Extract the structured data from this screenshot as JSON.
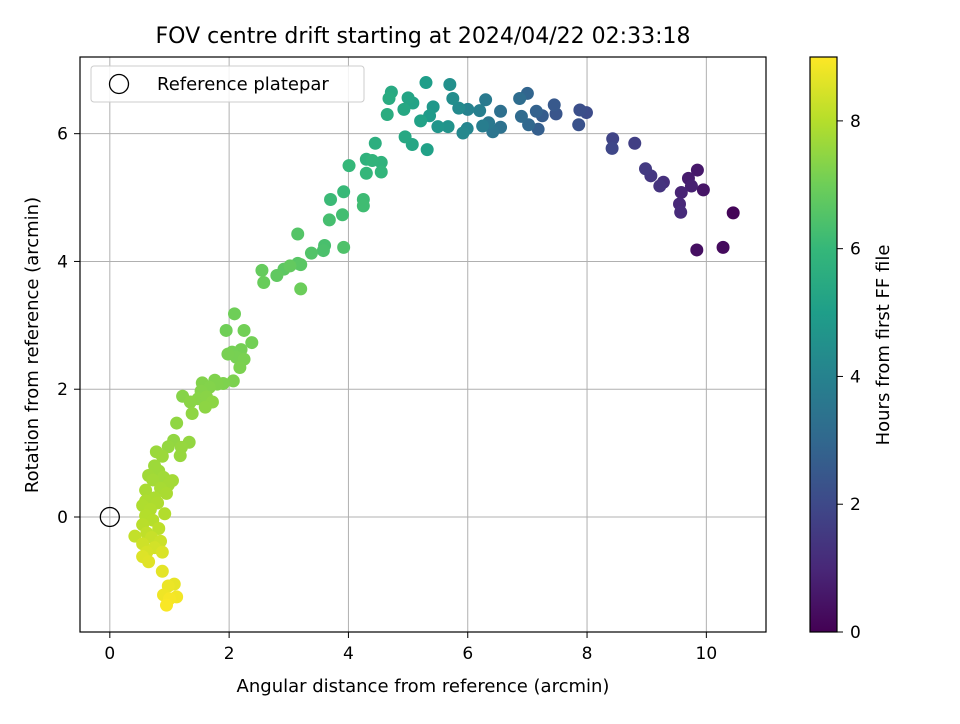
{
  "chart_data": {
    "type": "scatter",
    "title": "FOV centre drift starting at 2024/04/22 02:33:18",
    "xlabel": "Angular distance from reference (arcmin)",
    "ylabel": "Rotation from reference (arcmin)",
    "xlim": [
      -0.5,
      11.0
    ],
    "ylim": [
      -1.8,
      7.2
    ],
    "xticks": [
      0,
      2,
      4,
      6,
      8,
      10
    ],
    "yticks": [
      0,
      2,
      4,
      6
    ],
    "grid": true,
    "legend": {
      "position": "top-left",
      "entries": [
        {
          "label": "Reference platepar",
          "marker": "open-circle"
        }
      ]
    },
    "reference_point": {
      "x": 0,
      "y": 0
    },
    "colorbar": {
      "label": "Hours from first FF file",
      "ticks": [
        0,
        2,
        4,
        6,
        8
      ],
      "range": [
        0,
        9
      ],
      "colormap": "viridis",
      "colors": [
        "#440154",
        "#482878",
        "#3e4989",
        "#31688e",
        "#26828e",
        "#1f9e89",
        "#35b779",
        "#6ece58",
        "#b5de2b",
        "#fde725"
      ]
    },
    "points": [
      [
        10.45,
        4.76,
        0.1
      ],
      [
        10.28,
        4.22,
        0.25
      ],
      [
        9.84,
        4.18,
        0.35
      ],
      [
        9.95,
        5.12,
        0.5
      ],
      [
        9.85,
        5.43,
        0.6
      ],
      [
        9.7,
        5.3,
        0.7
      ],
      [
        9.75,
        5.18,
        0.8
      ],
      [
        9.58,
        5.08,
        0.9
      ],
      [
        9.55,
        4.9,
        1.0
      ],
      [
        9.57,
        4.77,
        1.1
      ],
      [
        9.28,
        5.24,
        1.25
      ],
      [
        9.22,
        5.18,
        1.35
      ],
      [
        9.07,
        5.34,
        1.45
      ],
      [
        8.98,
        5.45,
        1.55
      ],
      [
        8.8,
        5.85,
        1.7
      ],
      [
        8.43,
        5.92,
        1.85
      ],
      [
        8.42,
        5.77,
        1.95
      ],
      [
        7.99,
        6.33,
        2.1
      ],
      [
        7.88,
        6.37,
        2.2
      ],
      [
        7.86,
        6.14,
        2.3
      ],
      [
        7.48,
        6.31,
        2.4
      ],
      [
        7.45,
        6.45,
        2.5
      ],
      [
        7.25,
        6.28,
        2.6
      ],
      [
        7.18,
        6.07,
        2.7
      ],
      [
        7.15,
        6.35,
        2.8
      ],
      [
        7.0,
        6.63,
        2.9
      ],
      [
        7.02,
        6.14,
        3.0
      ],
      [
        6.9,
        6.27,
        3.1
      ],
      [
        6.87,
        6.55,
        3.2
      ],
      [
        6.55,
        6.35,
        3.3
      ],
      [
        6.55,
        6.1,
        3.4
      ],
      [
        6.42,
        6.03,
        3.5
      ],
      [
        6.35,
        6.17,
        3.6
      ],
      [
        6.3,
        6.53,
        3.7
      ],
      [
        6.25,
        6.12,
        3.8
      ],
      [
        6.2,
        6.36,
        3.9
      ],
      [
        6.0,
        6.38,
        4.0
      ],
      [
        5.99,
        6.08,
        4.1
      ],
      [
        5.92,
        6.01,
        4.2
      ],
      [
        5.85,
        6.4,
        4.3
      ],
      [
        5.75,
        6.55,
        4.4
      ],
      [
        5.7,
        6.77,
        4.5
      ],
      [
        5.67,
        6.11,
        4.6
      ],
      [
        5.5,
        6.11,
        4.7
      ],
      [
        5.42,
        6.42,
        4.8
      ],
      [
        5.36,
        6.28,
        4.9
      ],
      [
        5.3,
        6.8,
        5.0
      ],
      [
        5.32,
        5.75,
        5.1
      ],
      [
        5.21,
        6.2,
        5.15
      ],
      [
        5.08,
        6.48,
        5.2
      ],
      [
        5.0,
        6.56,
        5.25
      ],
      [
        5.07,
        5.83,
        5.3
      ],
      [
        4.93,
        6.38,
        5.35
      ],
      [
        4.95,
        5.95,
        5.4
      ],
      [
        4.72,
        6.65,
        5.45
      ],
      [
        4.68,
        6.55,
        5.5
      ],
      [
        4.65,
        6.3,
        5.55
      ],
      [
        4.45,
        5.85,
        5.65
      ],
      [
        4.3,
        5.6,
        5.75
      ],
      [
        4.55,
        5.55,
        5.8
      ],
      [
        4.4,
        5.58,
        5.85
      ],
      [
        4.55,
        5.4,
        5.9
      ],
      [
        4.3,
        5.38,
        5.95
      ],
      [
        4.01,
        5.5,
        6.0
      ],
      [
        3.92,
        5.09,
        6.05
      ],
      [
        3.7,
        4.97,
        6.1
      ],
      [
        4.25,
        4.97,
        6.15
      ],
      [
        4.25,
        4.87,
        6.2
      ],
      [
        3.9,
        4.73,
        6.25
      ],
      [
        3.68,
        4.65,
        6.3
      ],
      [
        3.6,
        4.25,
        6.35
      ],
      [
        3.58,
        4.17,
        6.4
      ],
      [
        3.92,
        4.22,
        6.45
      ],
      [
        3.38,
        4.13,
        6.5
      ],
      [
        3.15,
        4.43,
        6.55
      ],
      [
        3.15,
        3.97,
        6.6
      ],
      [
        3.2,
        3.95,
        6.65
      ],
      [
        2.92,
        3.88,
        6.7
      ],
      [
        2.8,
        3.78,
        6.75
      ],
      [
        3.02,
        3.93,
        6.8
      ],
      [
        2.55,
        3.86,
        6.85
      ],
      [
        2.58,
        3.67,
        6.9
      ],
      [
        3.2,
        3.57,
        6.95
      ],
      [
        2.09,
        3.18,
        7.0
      ],
      [
        1.95,
        2.92,
        7.02
      ],
      [
        2.25,
        2.92,
        7.04
      ],
      [
        2.38,
        2.73,
        7.06
      ],
      [
        2.2,
        2.62,
        7.08
      ],
      [
        2.05,
        2.58,
        7.1
      ],
      [
        2.12,
        2.5,
        7.12
      ],
      [
        1.98,
        2.55,
        7.14
      ],
      [
        2.25,
        2.47,
        7.16
      ],
      [
        2.18,
        2.34,
        7.18
      ],
      [
        2.07,
        2.13,
        7.2
      ],
      [
        1.9,
        2.09,
        7.22
      ],
      [
        1.76,
        2.14,
        7.24
      ],
      [
        1.8,
        2.08,
        7.26
      ],
      [
        1.55,
        2.1,
        7.28
      ],
      [
        1.67,
        2.03,
        7.3
      ],
      [
        1.53,
        1.97,
        7.32
      ],
      [
        1.22,
        1.89,
        7.34
      ],
      [
        1.48,
        1.85,
        7.36
      ],
      [
        1.62,
        1.88,
        7.38
      ],
      [
        1.35,
        1.8,
        7.4
      ],
      [
        1.72,
        1.8,
        7.42
      ],
      [
        1.6,
        1.72,
        7.44
      ],
      [
        1.38,
        1.62,
        7.46
      ],
      [
        1.12,
        1.47,
        7.48
      ],
      [
        1.07,
        1.2,
        7.5
      ],
      [
        1.33,
        1.17,
        7.52
      ],
      [
        0.98,
        1.1,
        7.54
      ],
      [
        1.2,
        1.09,
        7.56
      ],
      [
        1.18,
        0.96,
        7.58
      ],
      [
        0.78,
        1.02,
        7.62
      ],
      [
        0.88,
        0.95,
        7.64
      ],
      [
        0.75,
        0.8,
        7.66
      ],
      [
        0.82,
        0.72,
        7.68
      ],
      [
        0.65,
        0.65,
        7.7
      ],
      [
        0.9,
        0.62,
        7.72
      ],
      [
        0.72,
        0.58,
        7.74
      ],
      [
        1.05,
        0.57,
        7.76
      ],
      [
        0.98,
        0.5,
        7.78
      ],
      [
        0.85,
        0.45,
        7.8
      ],
      [
        0.6,
        0.42,
        7.82
      ],
      [
        0.95,
        0.37,
        7.84
      ],
      [
        0.75,
        0.3,
        7.86
      ],
      [
        0.6,
        0.25,
        7.88
      ],
      [
        0.8,
        0.22,
        7.9
      ],
      [
        0.55,
        0.18,
        7.92
      ],
      [
        0.68,
        0.12,
        7.94
      ],
      [
        0.92,
        0.05,
        7.96
      ],
      [
        0.6,
        0.02,
        7.98
      ],
      [
        0.72,
        -0.05,
        8.0
      ],
      [
        0.55,
        -0.12,
        8.05
      ],
      [
        0.82,
        -0.18,
        8.1
      ],
      [
        0.62,
        -0.25,
        8.15
      ],
      [
        0.42,
        -0.3,
        8.2
      ],
      [
        0.7,
        -0.32,
        8.25
      ],
      [
        0.85,
        -0.38,
        8.3
      ],
      [
        0.55,
        -0.42,
        8.35
      ],
      [
        0.75,
        -0.48,
        8.4
      ],
      [
        0.62,
        -0.55,
        8.45
      ],
      [
        0.88,
        -0.55,
        8.5
      ],
      [
        0.55,
        -0.62,
        8.55
      ],
      [
        0.65,
        -0.7,
        8.6
      ],
      [
        0.88,
        -0.85,
        8.65
      ],
      [
        1.08,
        -1.05,
        8.7
      ],
      [
        0.98,
        -1.08,
        8.75
      ],
      [
        0.9,
        -1.22,
        8.8
      ],
      [
        1.12,
        -1.25,
        8.85
      ],
      [
        1.0,
        -1.28,
        8.9
      ],
      [
        0.95,
        -1.38,
        8.95
      ]
    ]
  }
}
